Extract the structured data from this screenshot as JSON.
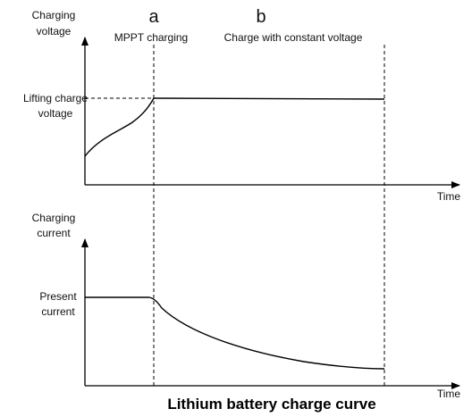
{
  "title": "Lithium battery charge curve",
  "top_chart": {
    "y_label": [
      "Charging",
      "voltage"
    ],
    "x_label": "Time",
    "level_label": [
      "Lifting charge",
      "voltage"
    ]
  },
  "bottom_chart": {
    "y_label": [
      "Charging",
      "current"
    ],
    "x_label": "Time",
    "level_label": [
      "Present",
      "current"
    ]
  },
  "phases": [
    {
      "letter": "a",
      "name": "MPPT charging"
    },
    {
      "letter": "b",
      "name": "Charge with constant voltage"
    }
  ]
}
